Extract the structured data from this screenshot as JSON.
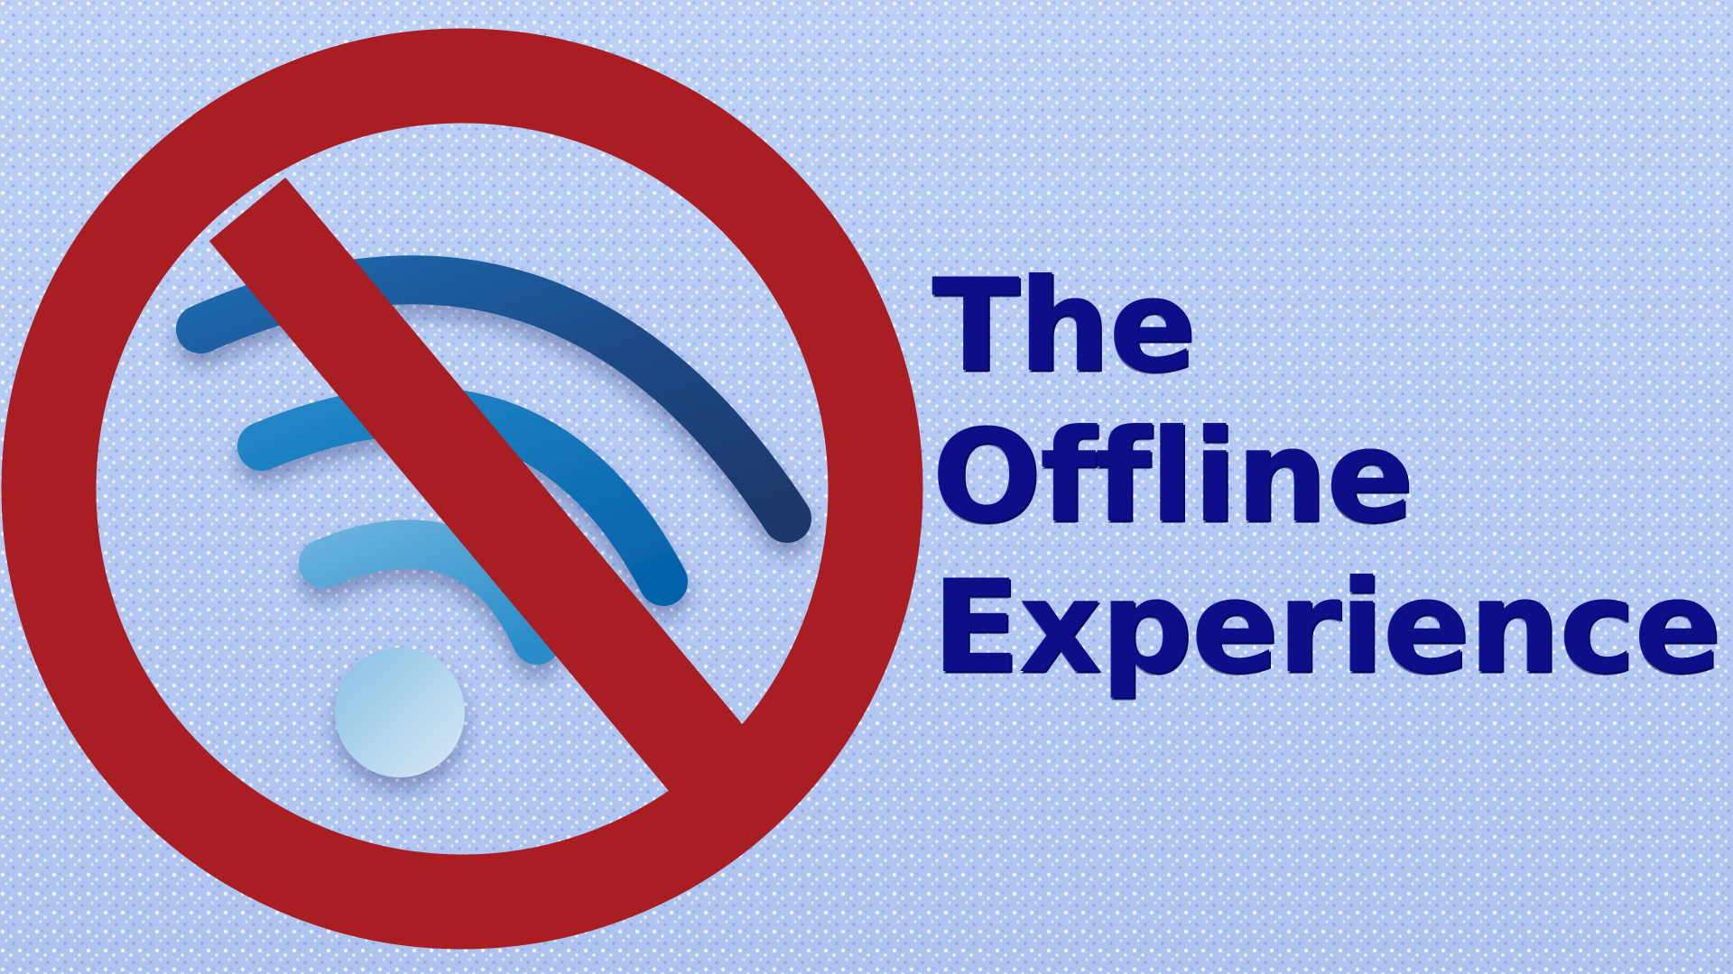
{
  "title": {
    "line1": "The",
    "line2": "Offline",
    "line3": "Experience"
  },
  "colors": {
    "background": "#b4c8f2",
    "prohibition_red": "#a81e22",
    "title_navy": "#0c0f88",
    "wifi_dark": "#1d3a6c",
    "wifi_mid": "#0a70b6",
    "wifi_light": "#cfe2f1"
  },
  "icons": {
    "wifi": "wifi-icon",
    "prohibition": "prohibition-icon"
  }
}
